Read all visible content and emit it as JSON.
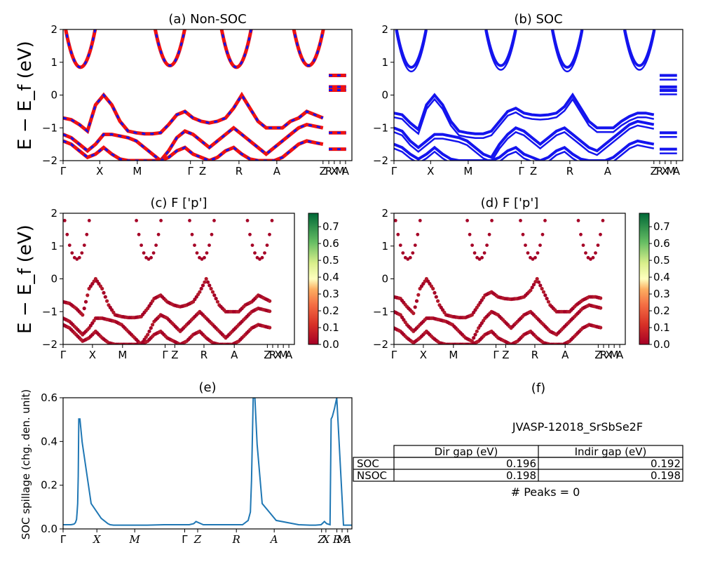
{
  "figure": {
    "ylabel_bands": "E − E_f (eV)",
    "ylabel_spillage": "SOC spillage (chg. den. unit)",
    "kpath": [
      "Γ",
      "X",
      "M",
      "Γ",
      "Z",
      "R",
      "A",
      "Z",
      "R",
      "X",
      "M",
      "A"
    ],
    "colors": {
      "red": "#ee1111",
      "blue": "#1414ee",
      "spill": "#1f77b4"
    }
  },
  "chart_data": [
    {
      "id": "a",
      "type": "line",
      "title": "(a) Non-SOC",
      "ylim": [
        -2,
        2
      ],
      "yticks": [
        "2",
        "1",
        "0",
        "−1",
        "−2"
      ],
      "xticks": [
        "Γ",
        "X",
        "M",
        "Γ",
        "Z",
        "R",
        "A",
        "Z",
        "R",
        "X",
        "M",
        "A"
      ],
      "series": [
        {
          "values": [
            -0.7,
            -0.75,
            -0.9,
            -1.1,
            -0.3,
            0.0,
            -0.3,
            -0.8,
            -1.1,
            -1.15,
            -1.18,
            -1.18,
            -1.15,
            -0.9,
            -0.6,
            -0.5,
            -0.7,
            -0.8,
            -0.85,
            -0.8,
            -0.7,
            -0.4,
            0.0,
            -0.4,
            -0.8,
            -1.0,
            -1.0,
            -1.0,
            -0.8,
            -0.7,
            -0.5,
            -0.6,
            -0.7
          ]
        },
        {
          "values": [
            -1.2,
            -1.3,
            -1.5,
            -1.7,
            -1.5,
            -1.2,
            -1.2,
            -1.25,
            -1.3,
            -1.4,
            -1.6,
            -1.8,
            -2.0,
            -1.7,
            -1.3,
            -1.1,
            -1.2,
            -1.4,
            -1.6,
            -1.4,
            -1.2,
            -1.0,
            -1.2,
            -1.4,
            -1.6,
            -1.8,
            -1.6,
            -1.4,
            -1.2,
            -1.0,
            -0.9,
            -0.95,
            -1.0
          ]
        },
        {
          "values": [
            -1.4,
            -1.5,
            -1.7,
            -1.9,
            -1.8,
            -1.6,
            -1.8,
            -1.95,
            -2.0,
            -2.0,
            -2.0,
            -2.0,
            -2.0,
            -1.9,
            -1.7,
            -1.6,
            -1.8,
            -1.9,
            -2.0,
            -1.9,
            -1.7,
            -1.6,
            -1.8,
            -1.95,
            -2.0,
            -2.0,
            -2.0,
            -1.9,
            -1.7,
            -1.5,
            -1.4,
            -1.45,
            -1.5
          ]
        }
      ]
    },
    {
      "id": "b",
      "type": "line",
      "title": "(b) SOC",
      "ylim": [
        -2,
        2
      ],
      "yticks": [
        "2",
        "1",
        "0",
        "−1",
        "−2"
      ],
      "xticks": [
        "Γ",
        "X",
        "M",
        "Γ",
        "Z",
        "R",
        "A",
        "Z",
        "R",
        "X",
        "M",
        "A"
      ],
      "series": [
        {
          "values": [
            -0.55,
            -0.6,
            -0.85,
            -1.05,
            -0.3,
            0.0,
            -0.3,
            -0.8,
            -1.1,
            -1.15,
            -1.18,
            -1.18,
            -1.1,
            -0.8,
            -0.5,
            -0.4,
            -0.55,
            -0.6,
            -0.62,
            -0.6,
            -0.55,
            -0.35,
            0.0,
            -0.4,
            -0.8,
            -1.0,
            -1.0,
            -1.0,
            -0.8,
            -0.65,
            -0.55,
            -0.55,
            -0.6
          ]
        },
        {
          "values": [
            -1.0,
            -1.1,
            -1.4,
            -1.6,
            -1.4,
            -1.2,
            -1.2,
            -1.25,
            -1.3,
            -1.4,
            -1.6,
            -1.8,
            -1.9,
            -1.5,
            -1.2,
            -1.0,
            -1.1,
            -1.3,
            -1.5,
            -1.3,
            -1.1,
            -1.0,
            -1.2,
            -1.4,
            -1.6,
            -1.7,
            -1.5,
            -1.3,
            -1.1,
            -0.9,
            -0.8,
            -0.85,
            -0.9
          ]
        },
        {
          "values": [
            -1.5,
            -1.6,
            -1.8,
            -1.95,
            -1.8,
            -1.6,
            -1.8,
            -1.95,
            -2.0,
            -2.0,
            -2.0,
            -2.0,
            -2.0,
            -1.9,
            -1.7,
            -1.6,
            -1.8,
            -1.9,
            -2.0,
            -1.9,
            -1.7,
            -1.6,
            -1.8,
            -1.95,
            -2.0,
            -2.0,
            -2.0,
            -1.9,
            -1.7,
            -1.5,
            -1.4,
            -1.45,
            -1.5
          ]
        }
      ]
    },
    {
      "id": "c",
      "type": "scatter",
      "title": "(c)  F ['p']",
      "ylim": [
        -2,
        2
      ],
      "yticks": [
        "2",
        "1",
        "0",
        "−1",
        "−2"
      ],
      "xticks": [
        "Γ",
        "X",
        "M",
        "Γ",
        "Z",
        "R",
        "A",
        "Z",
        "R",
        "X",
        "M",
        "A"
      ],
      "colorbar": {
        "ticks": [
          "0.7",
          "0.6",
          "0.5",
          "0.4",
          "0.3",
          "0.2",
          "0.1",
          "0.0"
        ],
        "range": [
          0,
          0.78
        ]
      }
    },
    {
      "id": "d",
      "type": "scatter",
      "title": "(d) F ['p']",
      "ylim": [
        -2,
        2
      ],
      "yticks": [
        "2",
        "1",
        "0",
        "−1",
        "−2"
      ],
      "xticks": [
        "Γ",
        "X",
        "M",
        "Γ",
        "Z",
        "R",
        "A",
        "Z",
        "R",
        "X",
        "M",
        "A"
      ],
      "colorbar": {
        "ticks": [
          "0.7",
          "0.6",
          "0.5",
          "0.4",
          "0.3",
          "0.2",
          "0.1",
          "0.0"
        ],
        "range": [
          0,
          0.78
        ]
      }
    },
    {
      "id": "e",
      "type": "line",
      "title": "(e)",
      "ylim": [
        0,
        0.62
      ],
      "yticks": [
        "0.6",
        "0.4",
        "0.2",
        "0.0"
      ],
      "xticks": [
        "Γ",
        "X",
        "M",
        "Γ",
        "Z",
        "R",
        "A",
        "Z",
        "X",
        "R",
        "M",
        "A"
      ],
      "x": [
        0,
        14,
        18,
        20,
        22,
        24,
        25,
        26,
        27,
        28,
        30,
        34,
        50,
        68,
        80,
        84,
        90,
        96,
        112,
        150,
        180,
        225,
        233,
        237,
        250,
        300,
        320,
        330,
        334,
        336,
        339,
        342,
        346,
        355,
        380,
        420,
        440,
        450,
        460,
        464,
        466,
        470,
        476,
        478,
        480,
        484,
        488,
        500,
        515
      ],
      "values": [
        0.02,
        0.02,
        0.022,
        0.024,
        0.03,
        0.045,
        0.08,
        0.12,
        0.25,
        0.52,
        0.52,
        0.41,
        0.12,
        0.05,
        0.025,
        0.02,
        0.018,
        0.018,
        0.018,
        0.018,
        0.02,
        0.02,
        0.025,
        0.035,
        0.02,
        0.02,
        0.02,
        0.04,
        0.08,
        0.23,
        0.62,
        0.62,
        0.4,
        0.12,
        0.04,
        0.02,
        0.018,
        0.018,
        0.02,
        0.03,
        0.035,
        0.025,
        0.02,
        0.52,
        0.53,
        0.57,
        0.62,
        0.018,
        0.018
      ]
    },
    {
      "id": "f",
      "type": "table",
      "title": "(f)",
      "subtitle": "JVASP-12018_SrSbSe2F",
      "columns": [
        "Dir gap (eV)",
        "Indir gap (eV)"
      ],
      "rows": [
        {
          "label": "SOC",
          "values": [
            "0.196",
            "0.192"
          ]
        },
        {
          "label": "NSOC",
          "values": [
            "0.198",
            "0.198"
          ]
        }
      ],
      "note": "# Peaks = 0"
    }
  ]
}
